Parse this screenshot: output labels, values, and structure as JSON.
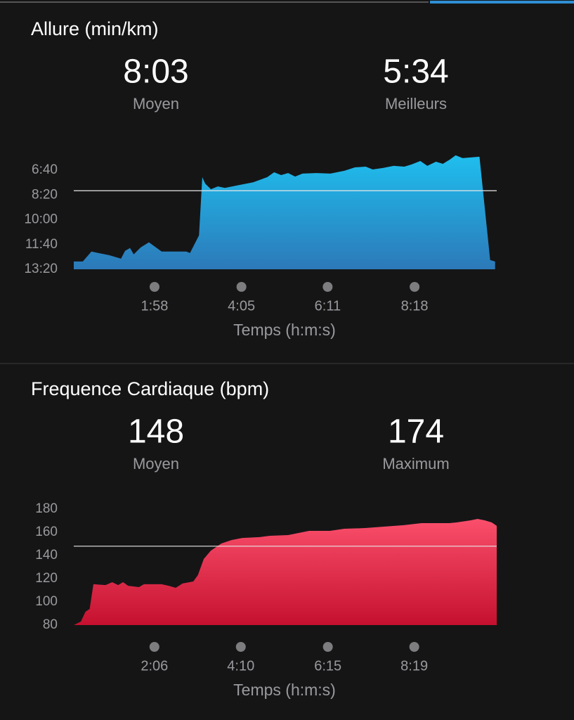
{
  "chart_data": [
    {
      "type": "area",
      "title": "Allure (min/km)",
      "stats": [
        {
          "value": {
            "value": 8.05,
            "label": "8:03"
          },
          "label": "Moyen"
        },
        {
          "value": {
            "value": 5.567,
            "label": "5:34"
          },
          "label": "Meilleurs"
        }
      ],
      "x": [
        0,
        0.22,
        0.43,
        0.6,
        0.86,
        1.15,
        1.25,
        1.37,
        1.46,
        1.63,
        1.83,
        2.14,
        2.74,
        2.83,
        3.05,
        3.13,
        3.2,
        3.34,
        3.51,
        3.68,
        4.02,
        4.37,
        4.71,
        4.88,
        5.05,
        5.22,
        5.39,
        5.57,
        5.91,
        6.25,
        6.59,
        6.85,
        7.11,
        7.28,
        7.53,
        7.79,
        8.05,
        8.22,
        8.44,
        8.61,
        8.82,
        8.99,
        9.16,
        9.3,
        9.47,
        9.88,
        10.14,
        10.26
      ],
      "values": [
        12.81,
        12.81,
        12.14,
        12.24,
        12.38,
        12.62,
        12.09,
        11.9,
        12.33,
        11.86,
        11.52,
        12.14,
        12.14,
        12.24,
        11.05,
        7.14,
        7.57,
        7.95,
        7.76,
        7.86,
        7.67,
        7.48,
        7.14,
        6.81,
        7.0,
        6.86,
        7.1,
        6.9,
        6.86,
        6.9,
        6.71,
        6.48,
        6.43,
        6.62,
        6.52,
        6.38,
        6.43,
        6.29,
        6.05,
        6.38,
        6.1,
        6.24,
        5.95,
        5.67,
        5.86,
        5.76,
        12.71,
        12.81
      ],
      "xlim": [
        0,
        10.3
      ],
      "ylim": [
        13.333,
        6.667
      ],
      "xticks": [
        {
          "value": 1.967,
          "label": "1:58"
        },
        {
          "value": 4.083,
          "label": "4:05"
        },
        {
          "value": 6.183,
          "label": "6:11"
        },
        {
          "value": 8.3,
          "label": "8:18"
        }
      ],
      "yticks": [
        {
          "value": 6.667,
          "label": "6:40"
        },
        {
          "value": 8.333,
          "label": "8:20"
        },
        {
          "value": 10,
          "label": "10:00"
        },
        {
          "value": 11.667,
          "label": "11:40"
        },
        {
          "value": 13.333,
          "label": "13:20"
        }
      ],
      "xlabel": "Temps (h:m:s)",
      "colors": [
        "#1fbeee",
        "#2c79b8"
      ]
    },
    {
      "type": "area",
      "title": "Frequence Cardiaque (bpm)",
      "stats": [
        {
          "value": 148,
          "label": "Moyen"
        },
        {
          "value": 174,
          "label": "Maximum"
        }
      ],
      "x": [
        0.17,
        0.34,
        0.45,
        0.55,
        0.64,
        0.93,
        1.09,
        1.23,
        1.35,
        1.47,
        1.73,
        1.85,
        2.27,
        2.44,
        2.61,
        2.77,
        3.03,
        3.14,
        3.28,
        3.45,
        3.7,
        3.95,
        4.2,
        4.62,
        4.87,
        5.3,
        5.55,
        5.8,
        6.3,
        6.64,
        7.14,
        7.56,
        8.07,
        8.49,
        9.16,
        9.33,
        9.67,
        9.83,
        10.0,
        10.17,
        10.29
      ],
      "values": [
        80,
        83,
        91.5,
        93.9,
        115.2,
        114.5,
        117,
        114.5,
        117,
        113.9,
        112.7,
        115.2,
        115.2,
        113.9,
        112.1,
        115.8,
        117.6,
        123,
        137,
        144.2,
        150.3,
        153.3,
        155.1,
        155.8,
        157,
        157.6,
        159.4,
        161.2,
        161.2,
        163,
        163.6,
        164.8,
        166.1,
        167.9,
        167.9,
        168.5,
        170.3,
        171.5,
        170.3,
        168.5,
        165.5
      ],
      "xlim": [
        0.17,
        10.29
      ],
      "ylim": [
        80,
        180
      ],
      "xticks": [
        {
          "value": 2.1,
          "label": "2:06"
        },
        {
          "value": 4.167,
          "label": "4:10"
        },
        {
          "value": 6.25,
          "label": "6:15"
        },
        {
          "value": 8.317,
          "label": "8:19"
        }
      ],
      "yticks": [
        80,
        100,
        120,
        140,
        160,
        180
      ],
      "xlabel": "Temps (h:m:s)",
      "colors": [
        "#fa4f6c",
        "#c5112f"
      ]
    }
  ]
}
